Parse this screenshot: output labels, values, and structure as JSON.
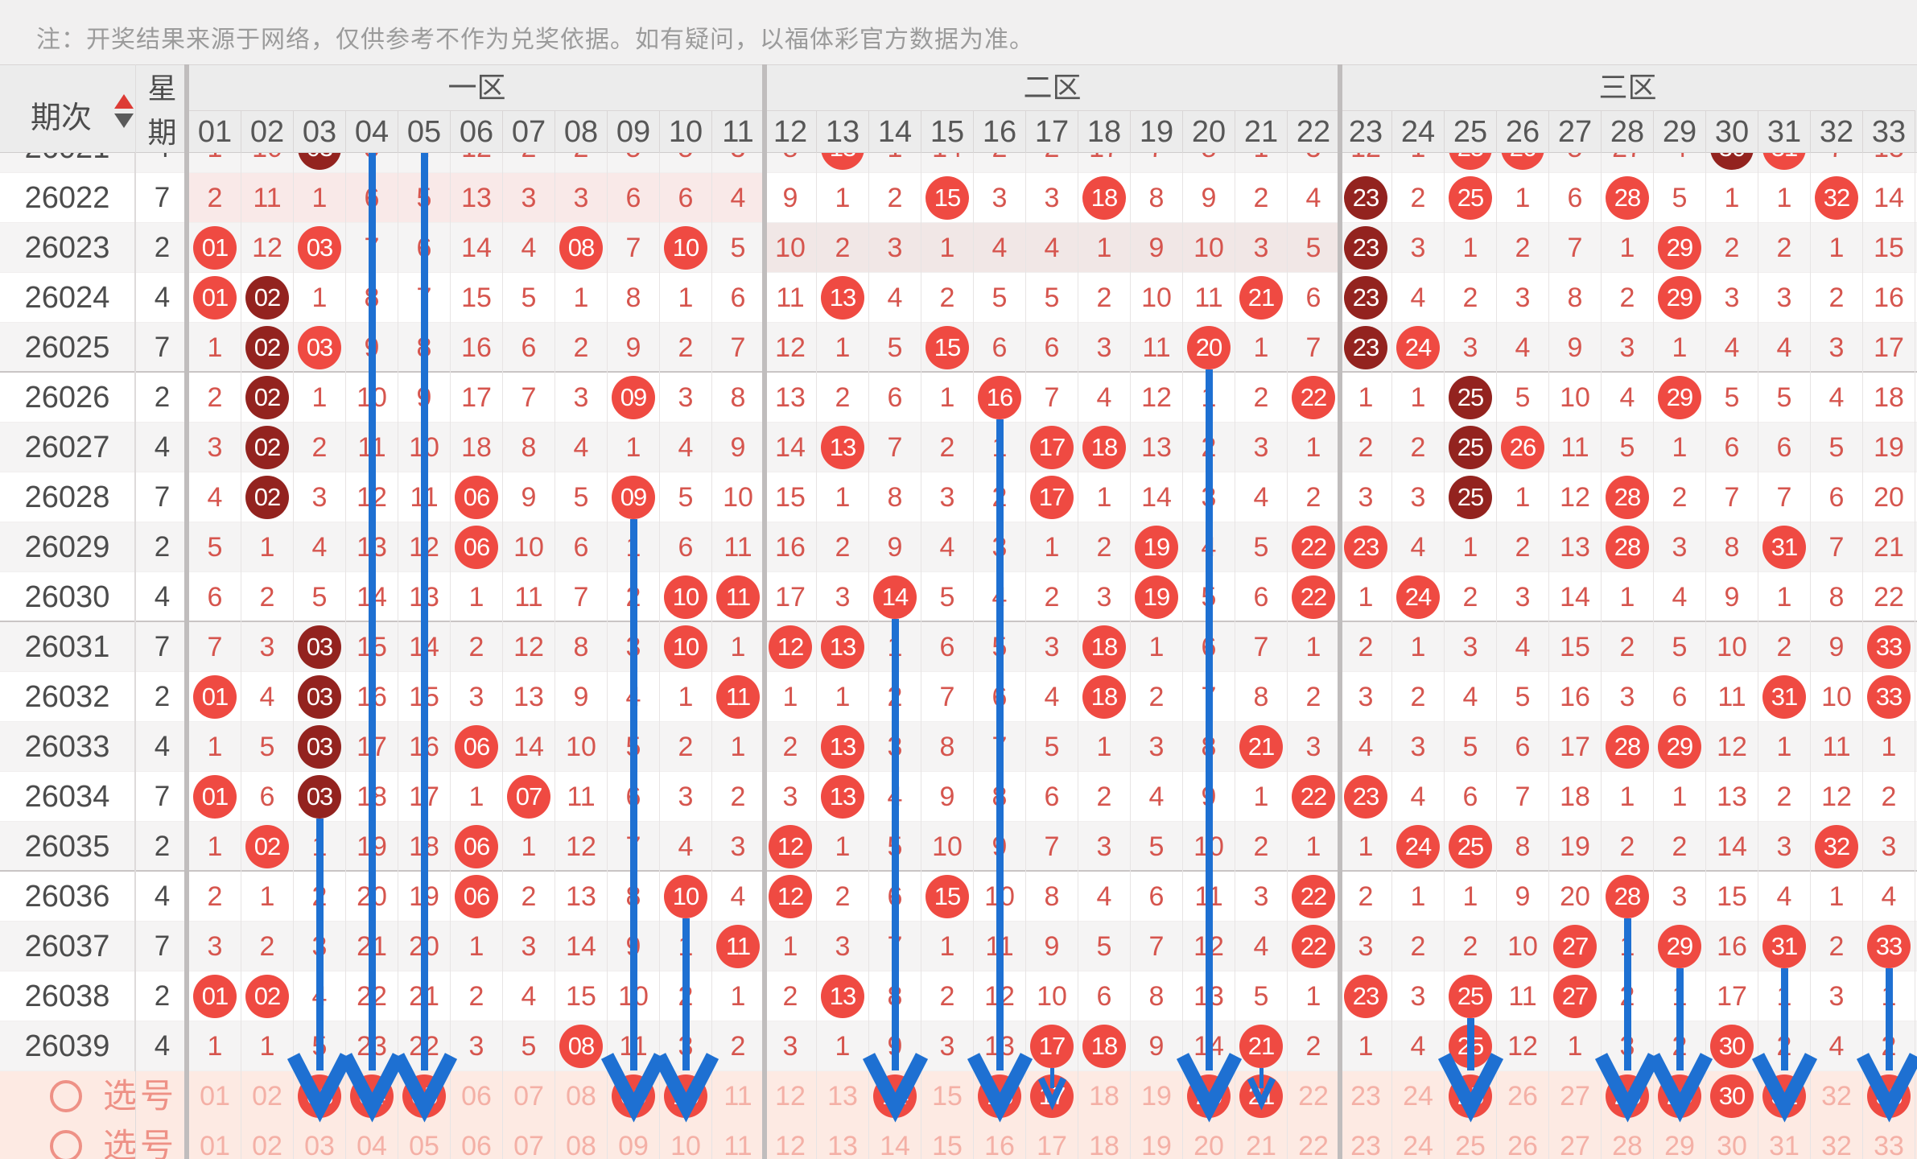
{
  "note": "注：开奖结果来源于网络，仅供参考不作为兑奖依据。如有疑问，以福体彩官方数据为准。",
  "header": {
    "period_label": "期次",
    "week_label": "星期",
    "zones": [
      {
        "label": "一区",
        "start": 1,
        "end": 11
      },
      {
        "label": "二区",
        "start": 12,
        "end": 22
      },
      {
        "label": "三区",
        "start": 23,
        "end": 33
      }
    ],
    "columns": [
      "01",
      "02",
      "03",
      "04",
      "05",
      "06",
      "07",
      "08",
      "09",
      "10",
      "11",
      "12",
      "13",
      "14",
      "15",
      "16",
      "17",
      "18",
      "19",
      "20",
      "21",
      "22",
      "23",
      "24",
      "25",
      "26",
      "27",
      "28",
      "29",
      "30",
      "31",
      "32",
      "33"
    ]
  },
  "colors": {
    "ball_red": "#ef4a42",
    "ball_dark": "#93231f",
    "miss_number_red": "#d6554e",
    "arrow_blue": "#1e70d2",
    "selection_bg": "#fdeae3",
    "selection_number": "#f4b0a6",
    "selection_label": "#ee9186",
    "zone1_gap_highlight": "#f9e9e8",
    "zone2_gap_highlight": "#f1e7e6",
    "stripe": "#f5f4f4",
    "note_gray": "#9b9b9b"
  },
  "rows": [
    {
      "period": "26021",
      "week": "4",
      "clipped": true,
      "values": [
        "1",
        "10",
        "03",
        "5",
        "4",
        "12",
        "2",
        "2",
        "5",
        "5",
        "3",
        "8",
        "13",
        "1",
        "14",
        "2",
        "2",
        "17",
        "7",
        "8",
        "1",
        "3",
        "12",
        "1",
        "25",
        "26",
        "5",
        "27",
        "4",
        "30",
        "31",
        "7",
        "13"
      ],
      "balls": {
        "3": "dark",
        "13": "light",
        "25": "light",
        "26": "light",
        "30": "dark",
        "31": "light"
      }
    },
    {
      "period": "26022",
      "week": "7",
      "gap_zone": 1,
      "values": [
        "2",
        "11",
        "1",
        "6",
        "5",
        "13",
        "3",
        "3",
        "6",
        "6",
        "4",
        "9",
        "1",
        "2",
        "15",
        "3",
        "3",
        "18",
        "8",
        "9",
        "2",
        "4",
        "23",
        "2",
        "25",
        "1",
        "6",
        "28",
        "5",
        "1",
        "1",
        "32",
        "14"
      ],
      "balls": {
        "15": "light",
        "18": "light",
        "23": "dark",
        "25": "light",
        "28": "light",
        "32": "light"
      }
    },
    {
      "period": "26023",
      "week": "2",
      "gap_zone": 2,
      "values": [
        "01",
        "12",
        "03",
        "7",
        "6",
        "14",
        "4",
        "08",
        "7",
        "10",
        "5",
        "10",
        "2",
        "3",
        "1",
        "4",
        "4",
        "1",
        "9",
        "10",
        "3",
        "5",
        "23",
        "3",
        "1",
        "2",
        "7",
        "1",
        "29",
        "2",
        "2",
        "1",
        "15"
      ],
      "balls": {
        "1": "light",
        "3": "light",
        "8": "light",
        "10": "light",
        "23": "dark",
        "29": "light"
      }
    },
    {
      "period": "26024",
      "week": "4",
      "values": [
        "01",
        "02",
        "1",
        "8",
        "7",
        "15",
        "5",
        "1",
        "8",
        "1",
        "6",
        "11",
        "13",
        "4",
        "2",
        "5",
        "5",
        "2",
        "10",
        "11",
        "21",
        "6",
        "23",
        "4",
        "2",
        "3",
        "8",
        "2",
        "29",
        "3",
        "3",
        "2",
        "16"
      ],
      "balls": {
        "1": "light",
        "2": "dark",
        "13": "light",
        "21": "light",
        "23": "dark",
        "29": "light"
      }
    },
    {
      "period": "26025",
      "week": "7",
      "group_end": true,
      "values": [
        "1",
        "02",
        "03",
        "9",
        "8",
        "16",
        "6",
        "2",
        "9",
        "2",
        "7",
        "12",
        "1",
        "5",
        "15",
        "6",
        "6",
        "3",
        "11",
        "20",
        "1",
        "7",
        "23",
        "24",
        "3",
        "4",
        "9",
        "3",
        "1",
        "4",
        "4",
        "3",
        "17"
      ],
      "balls": {
        "2": "dark",
        "3": "light",
        "15": "light",
        "20": "light",
        "23": "dark",
        "24": "light"
      }
    },
    {
      "period": "26026",
      "week": "2",
      "values": [
        "2",
        "02",
        "1",
        "10",
        "9",
        "17",
        "7",
        "3",
        "09",
        "3",
        "8",
        "13",
        "2",
        "6",
        "1",
        "16",
        "7",
        "4",
        "12",
        "1",
        "2",
        "22",
        "1",
        "1",
        "25",
        "5",
        "10",
        "4",
        "29",
        "5",
        "5",
        "4",
        "18"
      ],
      "balls": {
        "2": "dark",
        "9": "light",
        "16": "light",
        "22": "light",
        "25": "dark",
        "29": "light"
      }
    },
    {
      "period": "26027",
      "week": "4",
      "values": [
        "3",
        "02",
        "2",
        "11",
        "10",
        "18",
        "8",
        "4",
        "1",
        "4",
        "9",
        "14",
        "13",
        "7",
        "2",
        "1",
        "17",
        "18",
        "13",
        "2",
        "3",
        "1",
        "2",
        "2",
        "25",
        "26",
        "11",
        "5",
        "1",
        "6",
        "6",
        "5",
        "19"
      ],
      "balls": {
        "2": "dark",
        "13": "light",
        "17": "light",
        "18": "light",
        "25": "dark",
        "26": "light"
      }
    },
    {
      "period": "26028",
      "week": "7",
      "values": [
        "4",
        "02",
        "3",
        "12",
        "11",
        "06",
        "9",
        "5",
        "09",
        "5",
        "10",
        "15",
        "1",
        "8",
        "3",
        "2",
        "17",
        "1",
        "14",
        "3",
        "4",
        "2",
        "3",
        "3",
        "25",
        "1",
        "12",
        "28",
        "2",
        "7",
        "7",
        "6",
        "20"
      ],
      "balls": {
        "2": "dark",
        "6": "light",
        "9": "light",
        "17": "light",
        "25": "dark",
        "28": "light"
      }
    },
    {
      "period": "26029",
      "week": "2",
      "values": [
        "5",
        "1",
        "4",
        "13",
        "12",
        "06",
        "10",
        "6",
        "1",
        "6",
        "11",
        "16",
        "2",
        "9",
        "4",
        "3",
        "1",
        "2",
        "19",
        "4",
        "5",
        "22",
        "23",
        "4",
        "1",
        "2",
        "13",
        "28",
        "3",
        "8",
        "31",
        "7",
        "21"
      ],
      "balls": {
        "6": "light",
        "19": "light",
        "22": "light",
        "23": "light",
        "28": "light",
        "31": "light"
      }
    },
    {
      "period": "26030",
      "week": "4",
      "group_end": true,
      "values": [
        "6",
        "2",
        "5",
        "14",
        "13",
        "1",
        "11",
        "7",
        "2",
        "10",
        "11",
        "17",
        "3",
        "14",
        "5",
        "4",
        "2",
        "3",
        "19",
        "5",
        "6",
        "22",
        "1",
        "24",
        "2",
        "3",
        "14",
        "1",
        "4",
        "9",
        "1",
        "8",
        "22"
      ],
      "balls": {
        "10": "light",
        "11": "light",
        "14": "light",
        "19": "light",
        "22": "light",
        "24": "light"
      }
    },
    {
      "period": "26031",
      "week": "7",
      "values": [
        "7",
        "3",
        "03",
        "15",
        "14",
        "2",
        "12",
        "8",
        "3",
        "10",
        "1",
        "12",
        "13",
        "1",
        "6",
        "5",
        "3",
        "18",
        "1",
        "6",
        "7",
        "1",
        "2",
        "1",
        "3",
        "4",
        "15",
        "2",
        "5",
        "10",
        "2",
        "9",
        "33"
      ],
      "balls": {
        "3": "dark",
        "10": "light",
        "12": "light",
        "13": "light",
        "18": "light",
        "33": "light"
      }
    },
    {
      "period": "26032",
      "week": "2",
      "values": [
        "01",
        "4",
        "03",
        "16",
        "15",
        "3",
        "13",
        "9",
        "4",
        "1",
        "11",
        "1",
        "1",
        "2",
        "7",
        "6",
        "4",
        "18",
        "2",
        "7",
        "8",
        "2",
        "3",
        "2",
        "4",
        "5",
        "16",
        "3",
        "6",
        "11",
        "31",
        "10",
        "33"
      ],
      "balls": {
        "1": "light",
        "3": "dark",
        "11": "light",
        "18": "light",
        "31": "light",
        "33": "light"
      }
    },
    {
      "period": "26033",
      "week": "4",
      "values": [
        "1",
        "5",
        "03",
        "17",
        "16",
        "06",
        "14",
        "10",
        "5",
        "2",
        "1",
        "2",
        "13",
        "3",
        "8",
        "7",
        "5",
        "1",
        "3",
        "8",
        "21",
        "3",
        "4",
        "3",
        "5",
        "6",
        "17",
        "28",
        "29",
        "12",
        "1",
        "11",
        "1"
      ],
      "balls": {
        "3": "dark",
        "6": "light",
        "13": "light",
        "21": "light",
        "28": "light",
        "29": "light"
      }
    },
    {
      "period": "26034",
      "week": "7",
      "values": [
        "01",
        "6",
        "03",
        "18",
        "17",
        "1",
        "07",
        "11",
        "6",
        "3",
        "2",
        "3",
        "13",
        "4",
        "9",
        "8",
        "6",
        "2",
        "4",
        "9",
        "1",
        "22",
        "23",
        "4",
        "6",
        "7",
        "18",
        "1",
        "1",
        "13",
        "2",
        "12",
        "2"
      ],
      "balls": {
        "1": "light",
        "3": "dark",
        "7": "light",
        "13": "light",
        "22": "light",
        "23": "light"
      }
    },
    {
      "period": "26035",
      "week": "2",
      "group_end": true,
      "values": [
        "1",
        "02",
        "1",
        "19",
        "18",
        "06",
        "1",
        "12",
        "7",
        "4",
        "3",
        "12",
        "1",
        "5",
        "10",
        "9",
        "7",
        "3",
        "5",
        "10",
        "2",
        "1",
        "1",
        "24",
        "25",
        "8",
        "19",
        "2",
        "2",
        "14",
        "3",
        "32",
        "3"
      ],
      "balls": {
        "2": "light",
        "6": "light",
        "12": "light",
        "24": "light",
        "25": "light",
        "32": "light"
      }
    },
    {
      "period": "26036",
      "week": "4",
      "values": [
        "2",
        "1",
        "2",
        "20",
        "19",
        "06",
        "2",
        "13",
        "8",
        "10",
        "4",
        "12",
        "2",
        "6",
        "15",
        "10",
        "8",
        "4",
        "6",
        "11",
        "3",
        "22",
        "2",
        "1",
        "1",
        "9",
        "20",
        "28",
        "3",
        "15",
        "4",
        "1",
        "4"
      ],
      "balls": {
        "6": "light",
        "10": "light",
        "12": "light",
        "15": "light",
        "22": "light",
        "28": "light"
      }
    },
    {
      "period": "26037",
      "week": "7",
      "values": [
        "3",
        "2",
        "3",
        "21",
        "20",
        "1",
        "3",
        "14",
        "9",
        "1",
        "11",
        "1",
        "3",
        "7",
        "1",
        "11",
        "9",
        "5",
        "7",
        "12",
        "4",
        "22",
        "3",
        "2",
        "2",
        "10",
        "27",
        "1",
        "29",
        "16",
        "31",
        "2",
        "33"
      ],
      "balls": {
        "11": "light",
        "22": "light",
        "27": "light",
        "29": "light",
        "31": "light",
        "33": "light"
      }
    },
    {
      "period": "26038",
      "week": "2",
      "values": [
        "01",
        "02",
        "4",
        "22",
        "21",
        "2",
        "4",
        "15",
        "10",
        "2",
        "1",
        "2",
        "13",
        "8",
        "2",
        "12",
        "10",
        "6",
        "8",
        "13",
        "5",
        "1",
        "23",
        "3",
        "25",
        "11",
        "27",
        "2",
        "1",
        "17",
        "1",
        "3",
        "1"
      ],
      "balls": {
        "1": "light",
        "2": "light",
        "13": "light",
        "23": "light",
        "25": "light",
        "27": "light"
      }
    },
    {
      "period": "26039",
      "week": "4",
      "values": [
        "1",
        "1",
        "5",
        "23",
        "22",
        "3",
        "5",
        "08",
        "11",
        "3",
        "2",
        "3",
        "1",
        "9",
        "3",
        "13",
        "17",
        "18",
        "9",
        "14",
        "21",
        "2",
        "1",
        "4",
        "25",
        "12",
        "1",
        "3",
        "2",
        "30",
        "2",
        "4",
        "2"
      ],
      "balls": {
        "8": "light",
        "17": "light",
        "18": "light",
        "21": "light",
        "25": "light",
        "30": "light"
      }
    }
  ],
  "selection_rows": [
    {
      "label": "选号",
      "circled": [
        3,
        4,
        5,
        9,
        10,
        14,
        16,
        17,
        20,
        21,
        25,
        28,
        29,
        30,
        31,
        33
      ]
    },
    {
      "label": "选号",
      "circled": []
    }
  ],
  "arrows": [
    {
      "col": 4,
      "from": "top",
      "size": "big"
    },
    {
      "col": 5,
      "from": "top",
      "size": "big"
    },
    {
      "col": 3,
      "from": "26034",
      "size": "big"
    },
    {
      "col": 9,
      "from": "26028",
      "size": "big"
    },
    {
      "col": 10,
      "from": "26036",
      "size": "big"
    },
    {
      "col": 14,
      "from": "26030",
      "size": "big"
    },
    {
      "col": 16,
      "from": "26026",
      "size": "big"
    },
    {
      "col": 17,
      "from": "26039",
      "size": "small"
    },
    {
      "col": 20,
      "from": "26025",
      "size": "big"
    },
    {
      "col": 21,
      "from": "26039",
      "size": "small"
    },
    {
      "col": 25,
      "from": "26038",
      "size": "big"
    },
    {
      "col": 28,
      "from": "26036",
      "size": "big"
    },
    {
      "col": 29,
      "from": "26037",
      "size": "big"
    },
    {
      "col": 31,
      "from": "26037",
      "size": "big"
    },
    {
      "col": 33,
      "from": "26037",
      "size": "big"
    }
  ]
}
